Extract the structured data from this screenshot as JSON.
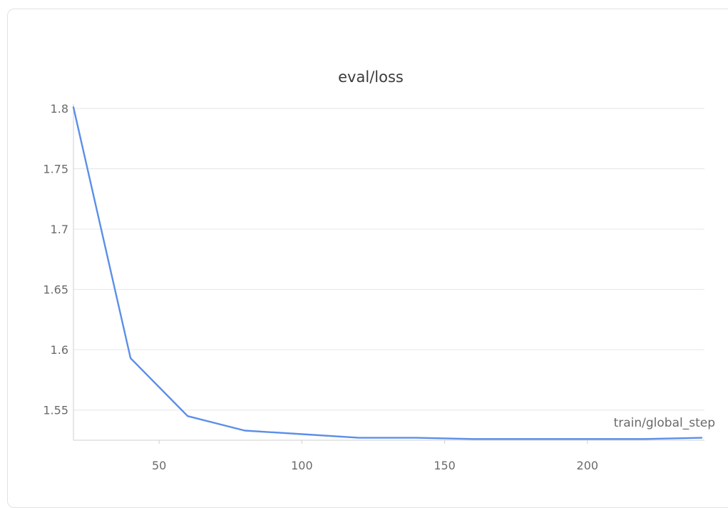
{
  "chart_data": {
    "type": "line",
    "title": "eval/loss",
    "xlabel": "train/global_step",
    "ylabel": "",
    "xlim": [
      20,
      241
    ],
    "ylim": [
      1.525,
      1.8
    ],
    "x_ticks": [
      50,
      100,
      150,
      200
    ],
    "y_ticks": [
      1.55,
      1.6,
      1.65,
      1.7,
      1.75,
      1.8
    ],
    "grid": true,
    "colors": {
      "line": "#5b8fe8",
      "grid": "#e6e6e6",
      "axis": "#cfcfcf"
    },
    "series": [
      {
        "x": [
          20,
          40,
          60,
          80,
          100,
          120,
          140,
          160,
          180,
          200,
          220,
          240
        ],
        "values": [
          1.801,
          1.593,
          1.545,
          1.533,
          1.53,
          1.527,
          1.527,
          1.526,
          1.526,
          1.526,
          1.526,
          1.527
        ]
      }
    ]
  }
}
